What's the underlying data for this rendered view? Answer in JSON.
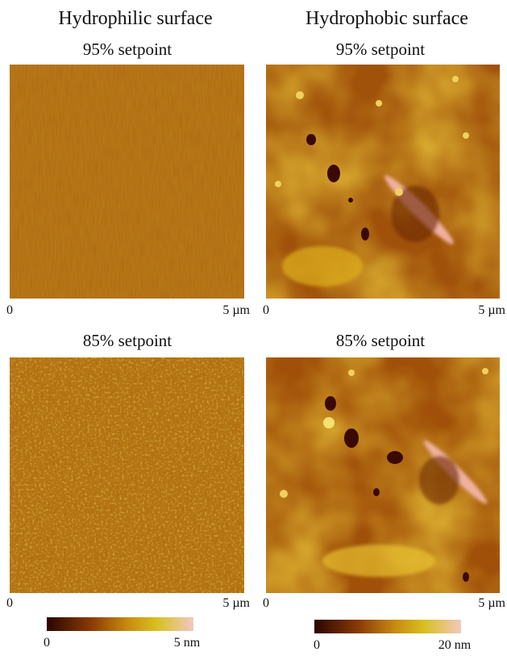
{
  "columns": [
    {
      "title": "Hydrophilic surface",
      "panels": [
        {
          "label": "95% setpoint",
          "axis": {
            "start": "0",
            "end": "5 µm"
          }
        },
        {
          "label": "85% setpoint",
          "axis": {
            "start": "0",
            "end": "5 µm"
          }
        }
      ],
      "colorbar": {
        "min": "0",
        "max": "5 nm"
      }
    },
    {
      "title": "Hydrophobic surface",
      "panels": [
        {
          "label": "95% setpoint",
          "axis": {
            "start": "0",
            "end": "5 µm"
          }
        },
        {
          "label": "85% setpoint",
          "axis": {
            "start": "0",
            "end": "5 µm"
          }
        }
      ],
      "colorbar": {
        "min": "0",
        "max": "20 nm"
      }
    }
  ]
}
